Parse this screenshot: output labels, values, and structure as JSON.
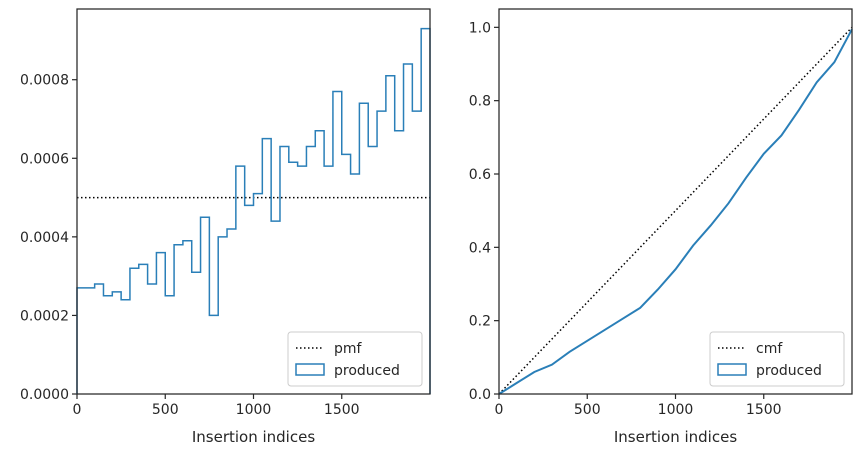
{
  "chart_data": [
    {
      "type": "step-histogram",
      "xlabel": "Insertion indices",
      "ylabel": "",
      "xlim": [
        0,
        2000
      ],
      "ylim": [
        0,
        0.00098
      ],
      "xticks": [
        0,
        500,
        1000,
        1500
      ],
      "xtick_labels": [
        "0",
        "500",
        "1000",
        "1500"
      ],
      "yticks": [
        0,
        0.0002,
        0.0004,
        0.0006,
        0.0008
      ],
      "ytick_labels": [
        "0.0000",
        "0.0002",
        "0.0004",
        "0.0006",
        "0.0008"
      ],
      "grid": false,
      "legend": {
        "location": "lower-right",
        "entries": [
          "pmf",
          "produced"
        ]
      },
      "pmf": {
        "name": "pmf",
        "value": 0.0005,
        "style": "dotted",
        "color": "#000000"
      },
      "produced": {
        "name": "produced",
        "color": "#2a7fb8",
        "bin_edges": [
          0,
          100,
          150,
          200,
          250,
          300,
          350,
          400,
          450,
          500,
          550,
          600,
          650,
          700,
          750,
          800,
          850,
          900,
          950,
          1000,
          1050,
          1100,
          1150,
          1200,
          1250,
          1300,
          1350,
          1400,
          1450,
          1500,
          1550,
          1600,
          1650,
          1700,
          1750,
          1800,
          1850,
          1900,
          1950,
          2000
        ],
        "values": [
          0.00027,
          0.00028,
          0.00025,
          0.00026,
          0.00024,
          0.00032,
          0.00033,
          0.00028,
          0.00036,
          0.00025,
          0.00038,
          0.00039,
          0.00031,
          0.00045,
          0.0002,
          0.0004,
          0.00042,
          0.00058,
          0.00048,
          0.00051,
          0.00065,
          0.00044,
          0.00063,
          0.00059,
          0.00058,
          0.00063,
          0.00067,
          0.00058,
          0.00077,
          0.00061,
          0.00056,
          0.00074,
          0.00063,
          0.00072,
          0.00081,
          0.00067,
          0.00084,
          0.00072,
          0.00093
        ]
      }
    },
    {
      "type": "line",
      "xlabel": "Insertion indices",
      "ylabel": "",
      "xlim": [
        0,
        2000
      ],
      "ylim": [
        0,
        1.05
      ],
      "xticks": [
        0,
        500,
        1000,
        1500
      ],
      "xtick_labels": [
        "0",
        "500",
        "1000",
        "1500"
      ],
      "yticks": [
        0,
        0.2,
        0.4,
        0.6,
        0.8,
        1.0
      ],
      "ytick_labels": [
        "0.0",
        "0.2",
        "0.4",
        "0.6",
        "0.8",
        "1.0"
      ],
      "grid": false,
      "legend": {
        "location": "lower-right",
        "entries": [
          "cmf",
          "produced"
        ]
      },
      "cmf": {
        "name": "cmf",
        "x": [
          0,
          2000
        ],
        "y": [
          0,
          1.0
        ],
        "style": "dotted",
        "color": "#000000"
      },
      "produced": {
        "name": "produced",
        "color": "#2a7fb8",
        "x": [
          0,
          100,
          200,
          300,
          400,
          500,
          600,
          700,
          800,
          900,
          1000,
          1100,
          1200,
          1300,
          1400,
          1500,
          1600,
          1700,
          1800,
          1900,
          2000
        ],
        "y": [
          0,
          0.03,
          0.06,
          0.08,
          0.115,
          0.145,
          0.175,
          0.205,
          0.235,
          0.285,
          0.34,
          0.405,
          0.46,
          0.52,
          0.59,
          0.655,
          0.705,
          0.775,
          0.85,
          0.905,
          0.995
        ]
      }
    }
  ]
}
